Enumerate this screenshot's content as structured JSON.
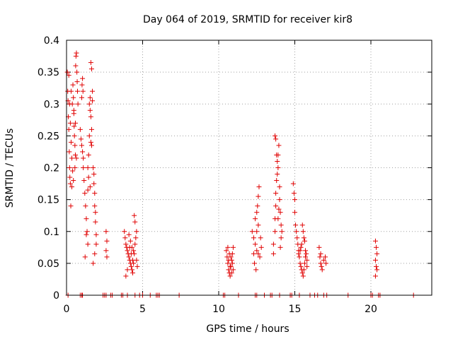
{
  "chart_data": {
    "type": "scatter",
    "title": "Day 064 of 2019, SRMTID for receiver kir8",
    "xlabel": "GPS time / hours",
    "ylabel": "SRMTID / TECUs",
    "xlim": [
      0,
      24
    ],
    "ylim": [
      0,
      0.4
    ],
    "x_ticks": [
      0,
      5,
      10,
      15,
      20
    ],
    "y_ticks": [
      0,
      0.05,
      0.1,
      0.15,
      0.2,
      0.25,
      0.3,
      0.35,
      0.4
    ],
    "x_tick_labels": [
      "0",
      "5",
      "10",
      "15",
      "20"
    ],
    "y_tick_labels": [
      "0",
      "0.05",
      "0.1",
      "0.15",
      "0.2",
      "0.25",
      "0.3",
      "0.35",
      "0.4"
    ],
    "grid": true,
    "marker": "+",
    "marker_color": "#e00000",
    "series": [
      {
        "name": "SRMTID",
        "points": [
          [
            0.05,
            0.35
          ],
          [
            0.08,
            0.32
          ],
          [
            0.1,
            0.305
          ],
          [
            0.12,
            0.28
          ],
          [
            0.15,
            0.26
          ],
          [
            0.18,
            0.225
          ],
          [
            0.2,
            0.2
          ],
          [
            0.22,
            0.185
          ],
          [
            0.25,
            0.175
          ],
          [
            0.28,
            0.14
          ],
          [
            0.15,
            0.345
          ],
          [
            0.2,
            0.3
          ],
          [
            0.25,
            0.27
          ],
          [
            0.3,
            0.24
          ],
          [
            0.35,
            0.215
          ],
          [
            0.4,
            0.195
          ],
          [
            0.42,
            0.33
          ],
          [
            0.45,
            0.31
          ],
          [
            0.48,
            0.29
          ],
          [
            0.5,
            0.265
          ],
          [
            0.52,
            0.25
          ],
          [
            0.55,
            0.235
          ],
          [
            0.58,
            0.22
          ],
          [
            0.6,
            0.36
          ],
          [
            0.62,
            0.375
          ],
          [
            0.65,
            0.38
          ],
          [
            0.68,
            0.35
          ],
          [
            0.7,
            0.335
          ],
          [
            0.72,
            0.32
          ],
          [
            0.75,
            0.3
          ],
          [
            0.35,
            0.17
          ],
          [
            0.45,
            0.18
          ],
          [
            0.55,
            0.2
          ],
          [
            0.65,
            0.215
          ],
          [
            0.3,
            0.32
          ],
          [
            0.38,
            0.3
          ],
          [
            0.48,
            0.285
          ],
          [
            0.58,
            0.27
          ],
          [
            0.9,
            0.26
          ],
          [
            0.95,
            0.245
          ],
          [
            1.0,
            0.235
          ],
          [
            1.05,
            0.225
          ],
          [
            1.1,
            0.215
          ],
          [
            1.0,
            0.31
          ],
          [
            1.02,
            0.33
          ],
          [
            1.05,
            0.34
          ],
          [
            1.08,
            0.32
          ],
          [
            1.1,
            0.2
          ],
          [
            1.15,
            0.18
          ],
          [
            1.2,
            0.16
          ],
          [
            1.25,
            0.14
          ],
          [
            1.3,
            0.12
          ],
          [
            1.35,
            0.1
          ],
          [
            1.4,
            0.08
          ],
          [
            1.22,
            0.06
          ],
          [
            1.3,
            0.095
          ],
          [
            1.4,
            0.165
          ],
          [
            1.45,
            0.22
          ],
          [
            1.5,
            0.25
          ],
          [
            1.5,
            0.3
          ],
          [
            1.55,
            0.31
          ],
          [
            1.55,
            0.29
          ],
          [
            1.6,
            0.28
          ],
          [
            1.6,
            0.365
          ],
          [
            1.65,
            0.355
          ],
          [
            1.65,
            0.26
          ],
          [
            1.7,
            0.32
          ],
          [
            1.7,
            0.305
          ],
          [
            1.75,
            0.2
          ],
          [
            1.8,
            0.19
          ],
          [
            1.8,
            0.175
          ],
          [
            1.85,
            0.16
          ],
          [
            1.85,
            0.14
          ],
          [
            1.9,
            0.13
          ],
          [
            1.9,
            0.115
          ],
          [
            1.95,
            0.095
          ],
          [
            1.75,
            0.05
          ],
          [
            1.85,
            0.065
          ],
          [
            1.95,
            0.08
          ],
          [
            1.4,
            0.2
          ],
          [
            1.45,
            0.185
          ],
          [
            1.55,
            0.17
          ],
          [
            1.6,
            0.24
          ],
          [
            1.65,
            0.235
          ],
          [
            2.6,
            0.1
          ],
          [
            2.65,
            0.085
          ],
          [
            2.6,
            0.07
          ],
          [
            2.65,
            0.06
          ],
          [
            3.8,
            0.1
          ],
          [
            3.85,
            0.09
          ],
          [
            3.9,
            0.08
          ],
          [
            3.95,
            0.075
          ],
          [
            4.0,
            0.07
          ],
          [
            4.05,
            0.065
          ],
          [
            4.1,
            0.06
          ],
          [
            4.15,
            0.055
          ],
          [
            4.2,
            0.05
          ],
          [
            4.25,
            0.045
          ],
          [
            4.3,
            0.04
          ],
          [
            4.35,
            0.035
          ],
          [
            4.1,
            0.095
          ],
          [
            4.2,
            0.085
          ],
          [
            4.3,
            0.075
          ],
          [
            4.4,
            0.07
          ],
          [
            4.45,
            0.065
          ],
          [
            4.5,
            0.08
          ],
          [
            4.55,
            0.09
          ],
          [
            4.6,
            0.1
          ],
          [
            4.45,
            0.125
          ],
          [
            4.5,
            0.115
          ],
          [
            3.9,
            0.03
          ],
          [
            4.0,
            0.04
          ],
          [
            4.6,
            0.055
          ],
          [
            4.65,
            0.045
          ],
          [
            4.4,
            0.05
          ],
          [
            4.25,
            0.065
          ],
          [
            4.35,
            0.055
          ],
          [
            4.15,
            0.075
          ],
          [
            10.5,
            0.07
          ],
          [
            10.55,
            0.06
          ],
          [
            10.6,
            0.05
          ],
          [
            10.65,
            0.04
          ],
          [
            10.7,
            0.035
          ],
          [
            10.75,
            0.03
          ],
          [
            10.8,
            0.045
          ],
          [
            10.85,
            0.055
          ],
          [
            10.9,
            0.065
          ],
          [
            10.95,
            0.075
          ],
          [
            10.6,
            0.075
          ],
          [
            10.7,
            0.065
          ],
          [
            10.8,
            0.06
          ],
          [
            10.9,
            0.05
          ],
          [
            10.95,
            0.04
          ],
          [
            10.65,
            0.055
          ],
          [
            10.75,
            0.045
          ],
          [
            10.85,
            0.035
          ],
          [
            12.2,
            0.1
          ],
          [
            12.3,
            0.09
          ],
          [
            12.4,
            0.08
          ],
          [
            12.5,
            0.07
          ],
          [
            12.6,
            0.065
          ],
          [
            12.7,
            0.06
          ],
          [
            12.4,
            0.12
          ],
          [
            12.5,
            0.13
          ],
          [
            12.55,
            0.14
          ],
          [
            12.6,
            0.155
          ],
          [
            12.65,
            0.17
          ],
          [
            12.35,
            0.05
          ],
          [
            12.45,
            0.04
          ],
          [
            12.8,
            0.075
          ],
          [
            12.75,
            0.09
          ],
          [
            12.5,
            0.1
          ],
          [
            12.6,
            0.11
          ],
          [
            12.3,
            0.065
          ],
          [
            13.6,
            0.065
          ],
          [
            13.6,
            0.08
          ],
          [
            13.7,
            0.1
          ],
          [
            13.7,
            0.12
          ],
          [
            13.75,
            0.14
          ],
          [
            13.75,
            0.16
          ],
          [
            13.8,
            0.18
          ],
          [
            13.85,
            0.19
          ],
          [
            13.9,
            0.2
          ],
          [
            13.9,
            0.22
          ],
          [
            13.95,
            0.235
          ],
          [
            13.7,
            0.25
          ],
          [
            13.75,
            0.245
          ],
          [
            13.8,
            0.22
          ],
          [
            13.85,
            0.21
          ],
          [
            14.0,
            0.17
          ],
          [
            14.0,
            0.15
          ],
          [
            14.05,
            0.13
          ],
          [
            14.1,
            0.11
          ],
          [
            14.1,
            0.09
          ],
          [
            14.05,
            0.075
          ],
          [
            14.15,
            0.1
          ],
          [
            13.9,
            0.12
          ],
          [
            13.95,
            0.135
          ],
          [
            14.9,
            0.175
          ],
          [
            14.95,
            0.16
          ],
          [
            15.0,
            0.15
          ],
          [
            15.0,
            0.13
          ],
          [
            15.05,
            0.11
          ],
          [
            15.1,
            0.1
          ],
          [
            15.15,
            0.09
          ],
          [
            15.2,
            0.08
          ],
          [
            15.25,
            0.07
          ],
          [
            15.3,
            0.06
          ],
          [
            15.35,
            0.05
          ],
          [
            15.4,
            0.045
          ],
          [
            15.45,
            0.04
          ],
          [
            15.5,
            0.035
          ],
          [
            15.55,
            0.03
          ],
          [
            15.6,
            0.04
          ],
          [
            15.65,
            0.05
          ],
          [
            15.7,
            0.06
          ],
          [
            15.75,
            0.065
          ],
          [
            15.8,
            0.055
          ],
          [
            15.5,
            0.11
          ],
          [
            15.55,
            0.1
          ],
          [
            15.6,
            0.09
          ],
          [
            15.45,
            0.08
          ],
          [
            15.35,
            0.07
          ],
          [
            15.25,
            0.065
          ],
          [
            15.4,
            0.075
          ],
          [
            15.65,
            0.085
          ],
          [
            15.7,
            0.07
          ],
          [
            15.8,
            0.045
          ],
          [
            16.6,
            0.075
          ],
          [
            16.65,
            0.06
          ],
          [
            16.7,
            0.05
          ],
          [
            16.75,
            0.045
          ],
          [
            16.8,
            0.04
          ],
          [
            16.7,
            0.065
          ],
          [
            16.9,
            0.055
          ],
          [
            17.0,
            0.06
          ],
          [
            17.05,
            0.05
          ],
          [
            20.3,
            0.085
          ],
          [
            20.35,
            0.075
          ],
          [
            20.4,
            0.065
          ],
          [
            20.3,
            0.055
          ],
          [
            20.35,
            0.045
          ],
          [
            20.4,
            0.04
          ],
          [
            20.3,
            0.03
          ],
          [
            0.1,
            0.0
          ],
          [
            0.9,
            0.0
          ],
          [
            1.0,
            0.0
          ],
          [
            1.05,
            0.0
          ],
          [
            2.4,
            0.0
          ],
          [
            2.5,
            0.0
          ],
          [
            2.6,
            0.0
          ],
          [
            2.9,
            0.0
          ],
          [
            3.0,
            0.0
          ],
          [
            3.6,
            0.0
          ],
          [
            3.7,
            0.0
          ],
          [
            4.0,
            0.0
          ],
          [
            4.5,
            0.0
          ],
          [
            4.8,
            0.0
          ],
          [
            5.0,
            0.0
          ],
          [
            5.5,
            0.0
          ],
          [
            5.9,
            0.0
          ],
          [
            6.0,
            0.0
          ],
          [
            6.1,
            0.0
          ],
          [
            7.4,
            0.0
          ],
          [
            10.3,
            0.0
          ],
          [
            10.4,
            0.0
          ],
          [
            11.3,
            0.0
          ],
          [
            12.4,
            0.0
          ],
          [
            12.5,
            0.0
          ],
          [
            13.0,
            0.0
          ],
          [
            13.4,
            0.0
          ],
          [
            13.5,
            0.0
          ],
          [
            14.0,
            0.0
          ],
          [
            14.7,
            0.0
          ],
          [
            14.8,
            0.0
          ],
          [
            15.3,
            0.0
          ],
          [
            16.0,
            0.0
          ],
          [
            16.3,
            0.0
          ],
          [
            16.5,
            0.0
          ],
          [
            16.9,
            0.0
          ],
          [
            17.1,
            0.0
          ],
          [
            18.5,
            0.0
          ],
          [
            20.0,
            0.0
          ],
          [
            20.1,
            0.0
          ],
          [
            20.5,
            0.0
          ],
          [
            20.6,
            0.0
          ],
          [
            22.8,
            0.0
          ]
        ]
      }
    ]
  }
}
